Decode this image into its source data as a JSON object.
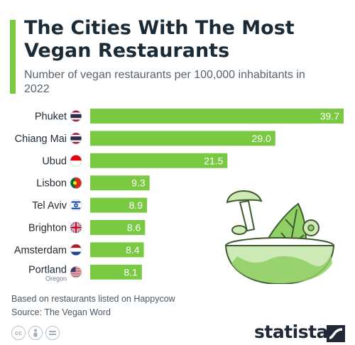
{
  "header": {
    "title": "The Cities With The Most Vegan Restaurants",
    "subtitle": "Number of vegan restaurants per 100,000 inhabitants in 2022"
  },
  "chart_data": {
    "type": "bar",
    "orientation": "horizontal",
    "categories": [
      "Phuket",
      "Chiang Mai",
      "Ubud",
      "Lisbon",
      "Tel Aviv",
      "Brighton",
      "Amsterdam",
      "Portland"
    ],
    "category_sublabels": {
      "Portland": "Oregon"
    },
    "values": [
      39.7,
      29.0,
      21.5,
      9.3,
      8.9,
      8.6,
      8.4,
      8.1
    ],
    "value_labels": [
      "39.7",
      "29.0",
      "21.5",
      "9.3",
      "8.9",
      "8.6",
      "8.4",
      "8.1"
    ],
    "flags": [
      "flag-thailand",
      "flag-thailand",
      "flag-indonesia",
      "flag-portugal",
      "flag-israel",
      "flag-united-kingdom",
      "flag-netherlands",
      "flag-united-states"
    ],
    "bar_color": "#7ac943",
    "xlim": [
      0,
      39.7
    ],
    "grid": false,
    "title": "The Cities With The Most Vegan Restaurants",
    "subtitle": "Number of vegan restaurants per 100,000 inhabitants in 2022"
  },
  "illustration": "vegan-salad-bowl-illustration",
  "footer": {
    "note": "Based on restaurants listed on Happycow",
    "source": "Source: The Vegan Word",
    "licence_icons": [
      "cc-icon",
      "attribution-icon",
      "no-derivatives-icon"
    ],
    "brand": "statista"
  },
  "colors": {
    "accent": "#7ac943",
    "illustration_light": "#cdeab6",
    "illustration_mid": "#8fcf63",
    "illustration_outline": "#3c5a2e",
    "text_dark": "#1a2a36"
  }
}
